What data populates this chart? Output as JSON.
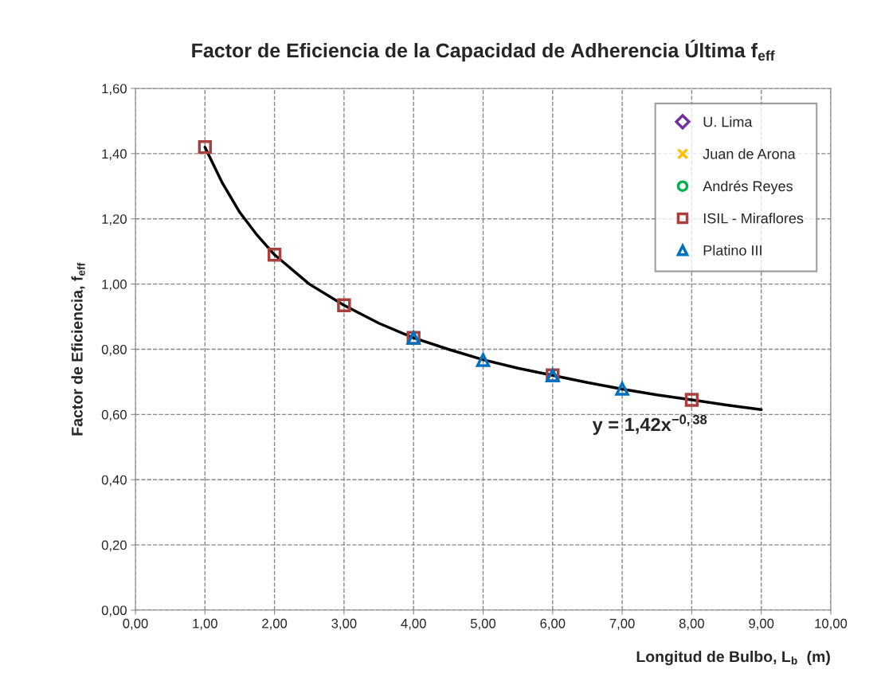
{
  "chart_data": {
    "type": "scatter",
    "title": "Factor de Eficiencia de la Capacidad de Adherencia Última f$_{eff}$",
    "xlabel": "Longitud de Bulbo, L$_{b}$  (m)",
    "ylabel": "Factor de Eficiencia, f$_{eff}$",
    "series": [
      {
        "name": "U. Lima",
        "color": "#7030a0",
        "marker": "diamond"
      },
      {
        "name": "Juan de Arona",
        "color": "#ffc000",
        "marker": "cross"
      },
      {
        "name": "Andrés Reyes",
        "color": "#00b050",
        "marker": "circle"
      },
      {
        "name": "ISIL - Miraflores",
        "color": "#a9403d",
        "marker": "square",
        "x": [
          1,
          2,
          3,
          4,
          6,
          8
        ],
        "values": [
          1.42,
          1.09,
          0.935,
          0.835,
          0.72,
          0.645
        ]
      },
      {
        "name": "Platino III",
        "color": "#0070c0",
        "marker": "triangle",
        "x": [
          4,
          5,
          6,
          7
        ],
        "values": [
          0.835,
          0.767,
          0.72,
          0.679
        ]
      },
      {
        "type": "line",
        "color": "#000000",
        "marker": "none",
        "x": [
          1,
          1.25,
          1.5,
          1.75,
          2,
          2.5,
          3,
          3.5,
          4,
          4.5,
          5,
          5.5,
          6,
          6.5,
          7,
          7.5,
          8,
          8.5,
          9
        ],
        "values": [
          1.42,
          1.31,
          1.22,
          1.15,
          1.09,
          1.0,
          0.935,
          0.88,
          0.835,
          0.8,
          0.768,
          0.742,
          0.72,
          0.698,
          0.678,
          0.66,
          0.645,
          0.629,
          0.615
        ]
      }
    ],
    "annotations": [
      "y = 1,42x$^{−0,38}$"
    ],
    "xlim": [
      0,
      10
    ],
    "ylim": [
      0,
      1.6
    ],
    "xticks": [
      {
        "value": 0,
        "label": "0,00"
      },
      {
        "value": 1,
        "label": "1,00"
      },
      {
        "value": 2,
        "label": "2,00"
      },
      {
        "value": 3,
        "label": "3,00"
      },
      {
        "value": 4,
        "label": "4,00"
      },
      {
        "value": 5,
        "label": "5,00"
      },
      {
        "value": 6,
        "label": "6,00"
      },
      {
        "value": 7,
        "label": "7,00"
      },
      {
        "value": 8,
        "label": "8,00"
      },
      {
        "value": 9,
        "label": "9,00"
      },
      {
        "value": 10,
        "label": "10,00"
      }
    ],
    "yticks": [
      {
        "value": 0,
        "label": "0,00"
      },
      {
        "value": 0.2,
        "label": "0,20"
      },
      {
        "value": 0.4,
        "label": "0,40"
      },
      {
        "value": 0.6,
        "label": "0,60"
      },
      {
        "value": 0.8,
        "label": "0,80"
      },
      {
        "value": 1.0,
        "label": "1,00"
      },
      {
        "value": 1.2,
        "label": "1,20"
      },
      {
        "value": 1.4,
        "label": "1,40"
      },
      {
        "value": 1.6,
        "label": "1,60"
      }
    ],
    "grid": true,
    "legend": "top right"
  }
}
